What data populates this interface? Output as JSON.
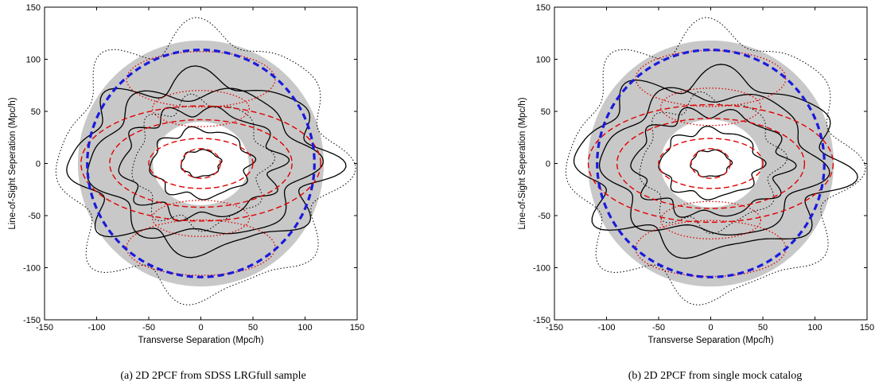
{
  "colors": {
    "shade": "#c8c8c8",
    "contour_data": "#000000",
    "contour_model": "#e00000",
    "bao_circle": "#1a1adc"
  },
  "chart_data": [
    {
      "type": "contour",
      "caption": "(a)  2D 2PCF from SDSS LRGfull sample",
      "xlabel": "Transverse Separation (Mpc/h)",
      "ylabel": "Line-of-Sight Seperation (Mpc/h)",
      "xlim": [
        -150,
        150
      ],
      "ylim": [
        -150,
        150
      ],
      "xticks": [
        -150,
        -100,
        -50,
        0,
        50,
        100,
        150
      ],
      "yticks": [
        -150,
        -100,
        -50,
        0,
        50,
        100,
        150
      ],
      "shaded_annulus": {
        "inner_radius": 40,
        "outer_radius": 118
      },
      "bao_circle_radius": 109,
      "solid_contour_radii": [
        15,
        38,
        60,
        82,
        96
      ],
      "dotted_contour_radii": [
        60,
        125
      ],
      "model_dashed_radii": [
        15,
        40,
        70,
        92
      ],
      "model_dotted_radii": [
        62,
        95
      ]
    },
    {
      "type": "contour",
      "caption": "(b)  2D 2PCF from single mock catalog",
      "xlabel": "Transverse Separation (Mpc/h)",
      "ylabel": "Line-of-Sight Seperation (Mpc/h)",
      "xlim": [
        -150,
        150
      ],
      "ylim": [
        -150,
        150
      ],
      "xticks": [
        -150,
        -100,
        -50,
        0,
        50,
        100,
        150
      ],
      "yticks": [
        -150,
        -100,
        -50,
        0,
        50,
        100,
        150
      ],
      "shaded_annulus": {
        "inner_radius": 42,
        "outer_radius": 118
      },
      "bao_circle_radius": 109,
      "solid_contour_radii": [
        15,
        38,
        58,
        80,
        98
      ],
      "dotted_contour_radii": [
        62,
        125
      ],
      "model_dashed_radii": [
        15,
        40,
        72,
        94
      ],
      "model_dotted_radii": [
        64,
        96
      ]
    }
  ]
}
